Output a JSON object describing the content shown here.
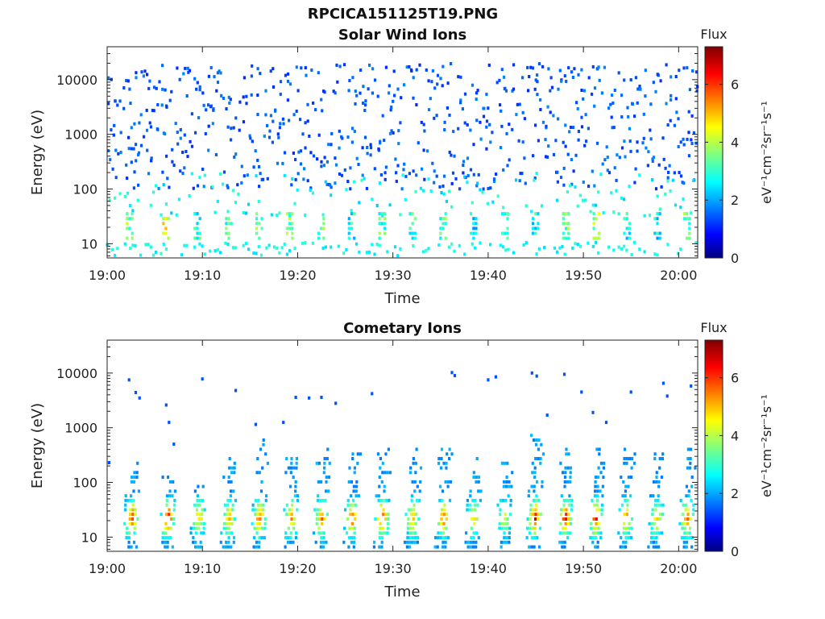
{
  "figure": {
    "title": "RPCICA151125T19.PNG"
  },
  "chart_data": [
    {
      "type": "heatmap",
      "title": "Solar Wind Ions",
      "xlabel": "Time",
      "ylabel": "Energy (eV)",
      "x_range": [
        "19:00",
        "20:02"
      ],
      "x_ticks": [
        "19:00",
        "19:10",
        "19:20",
        "19:30",
        "19:40",
        "19:50",
        "20:00"
      ],
      "y_scale": "log",
      "ylim": [
        5.5,
        40000
      ],
      "y_ticks": [
        {
          "value": 10,
          "label": "10"
        },
        {
          "value": 100,
          "label": "100"
        },
        {
          "value": 1000,
          "label": "1000"
        },
        {
          "value": 10000,
          "label": "10000"
        }
      ],
      "colorbar": {
        "title": "Flux",
        "label": "eV⁻¹cm⁻²sr⁻¹s⁻¹",
        "range": [
          0,
          7.3
        ],
        "ticks": [
          0,
          2,
          4,
          6
        ],
        "colormap": "jet"
      },
      "description_of_cells": "Sparse scattered counts: low flux (~1.5–2) spread over 100–30000 eV, moderate flux (~2.5–3.5) at 30–300 eV, bands at 10–40 eV with yellow spots (~4–5.5) near 19:06, 19:16, 19:22, 19:27, 19:32, 19:36, 19:44, 19:48, 19:52, 20:00",
      "bursts_minutes": [
        2.5,
        6.3,
        9.6,
        12.9,
        16.1,
        19.3,
        22.6,
        25.8,
        29.0,
        32.2,
        35.4,
        38.6,
        41.9,
        45.1,
        48.3,
        51.5,
        54.7,
        57.9,
        61.0
      ],
      "burst_peak_flux": [
        4.3,
        5.2,
        3.6,
        4.0,
        4.4,
        4.2,
        4.4,
        3.6,
        4.0,
        3.8,
        4.0,
        3.4,
        3.8,
        3.6,
        4.2,
        4.6,
        3.6,
        3.4,
        4.2
      ]
    },
    {
      "type": "heatmap",
      "title": "Cometary Ions",
      "xlabel": "Time",
      "ylabel": "Energy (eV)",
      "x_range": [
        "19:00",
        "20:02"
      ],
      "x_ticks": [
        "19:00",
        "19:10",
        "19:20",
        "19:30",
        "19:40",
        "19:50",
        "20:00"
      ],
      "y_scale": "log",
      "ylim": [
        5.5,
        40000
      ],
      "y_ticks": [
        {
          "value": 10,
          "label": "10"
        },
        {
          "value": 100,
          "label": "100"
        },
        {
          "value": 1000,
          "label": "1000"
        },
        {
          "value": 10000,
          "label": "10000"
        }
      ],
      "colorbar": {
        "title": "Flux",
        "label": "eV⁻¹cm⁻²sr⁻¹s⁻¹",
        "range": [
          0,
          7.3
        ],
        "ticks": [
          0,
          2,
          4,
          6
        ],
        "colormap": "jet"
      },
      "description_of_cells": "Periodic bursts every ~3.2 min: intense 10–40 eV core (flux ~5–7) with cyan plumes extending to ~300–600 eV; a few isolated counts at 1000–10000 eV",
      "bursts_minutes": [
        2.6,
        6.4,
        9.6,
        12.8,
        16.0,
        19.3,
        22.5,
        25.7,
        28.9,
        32.1,
        35.3,
        38.5,
        41.7,
        44.9,
        48.1,
        51.3,
        54.5,
        57.7,
        60.9
      ],
      "burst_peak_flux": [
        6.6,
        7.1,
        5.2,
        5.6,
        6.2,
        5.8,
        6.0,
        6.3,
        6.8,
        5.6,
        6.3,
        5.0,
        4.8,
        6.9,
        6.9,
        6.6,
        5.8,
        5.4,
        6.2
      ],
      "burst_top_energy_eV": [
        250,
        150,
        150,
        300,
        600,
        300,
        450,
        350,
        500,
        450,
        450,
        300,
        250,
        800,
        450,
        450,
        450,
        400,
        450
      ],
      "isolated_counts": [
        {
          "t": 0.2,
          "E": 230
        },
        {
          "t": 2.3,
          "E": 7500
        },
        {
          "t": 3.0,
          "E": 4400
        },
        {
          "t": 3.4,
          "E": 3500
        },
        {
          "t": 6.2,
          "E": 2600
        },
        {
          "t": 6.5,
          "E": 1250
        },
        {
          "t": 7.0,
          "E": 500
        },
        {
          "t": 10.0,
          "E": 7800
        },
        {
          "t": 13.5,
          "E": 4800
        },
        {
          "t": 15.6,
          "E": 1150
        },
        {
          "t": 18.5,
          "E": 1250
        },
        {
          "t": 19.8,
          "E": 3600
        },
        {
          "t": 21.2,
          "E": 3500
        },
        {
          "t": 22.5,
          "E": 3600
        },
        {
          "t": 24.0,
          "E": 2800
        },
        {
          "t": 27.8,
          "E": 4200
        },
        {
          "t": 36.2,
          "E": 10200
        },
        {
          "t": 36.5,
          "E": 9000
        },
        {
          "t": 40.0,
          "E": 7500
        },
        {
          "t": 40.8,
          "E": 8500
        },
        {
          "t": 44.6,
          "E": 10000
        },
        {
          "t": 45.1,
          "E": 8800
        },
        {
          "t": 46.2,
          "E": 1700
        },
        {
          "t": 48.0,
          "E": 9500
        },
        {
          "t": 49.8,
          "E": 4500
        },
        {
          "t": 51.0,
          "E": 1900
        },
        {
          "t": 52.4,
          "E": 1250
        },
        {
          "t": 55.0,
          "E": 4500
        },
        {
          "t": 58.4,
          "E": 6500
        },
        {
          "t": 58.8,
          "E": 3800
        },
        {
          "t": 61.3,
          "E": 5800
        }
      ]
    }
  ]
}
